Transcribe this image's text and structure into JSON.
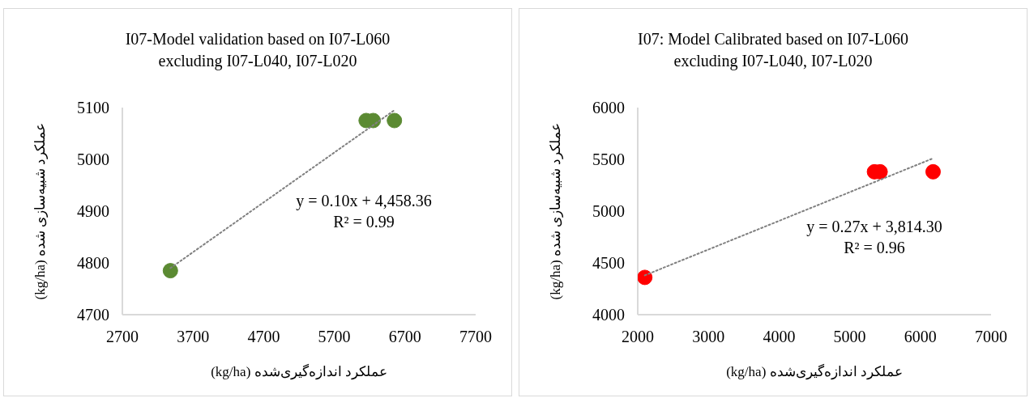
{
  "chart_data": [
    {
      "type": "scatter",
      "title": "I07-Model validation based on I07-L060\nexcluding I07-L040, I07-L020",
      "xlabel": "عملکرد اندازه‌گیری‌شده (kg/ha)",
      "ylabel": "عملکرد شبیه‌سازی شده (kg/ha)",
      "annotations": [
        "y = 0.10x + 4,458.36",
        "R² = 0.99"
      ],
      "series": [
        {
          "color": "#5b8a32",
          "marker": "circle",
          "x": [
            3380,
            6150,
            6250,
            6550
          ],
          "values": [
            4785,
            5075,
            5075,
            5075
          ]
        },
        {
          "type": "line",
          "color": "#808080",
          "marker": "none",
          "line_style": "dotted",
          "x": [
            3380,
            6550
          ],
          "values": [
            4790,
            5095
          ]
        }
      ],
      "xlim": [
        2700,
        7700
      ],
      "xticks": [
        2700,
        3700,
        4700,
        5700,
        6700,
        7700
      ],
      "ylim": [
        4700,
        5100
      ],
      "yticks": [
        4700,
        4800,
        4900,
        5000,
        5100
      ],
      "grid": false,
      "legend": false
    },
    {
      "type": "scatter",
      "title": "I07: Model Calibrated based on I07-L060\nexcluding I07-L040, I07-L020",
      "xlabel": "عملکرد اندازه‌گیری‌شده (kg/ha)",
      "ylabel": "عملکرد شبیه‌سازی شده (kg/ha)",
      "annotations": [
        "y = 0.27x + 3,814.30",
        "R² = 0.96"
      ],
      "series": [
        {
          "color": "#ff0000",
          "marker": "circle",
          "x": [
            2100,
            5350,
            5430,
            6180
          ],
          "values": [
            4360,
            5380,
            5380,
            5380
          ]
        },
        {
          "type": "line",
          "color": "#808080",
          "marker": "none",
          "line_style": "dotted",
          "x": [
            2100,
            6180
          ],
          "values": [
            4380,
            5510
          ]
        }
      ],
      "xlim": [
        2000,
        7000
      ],
      "xticks": [
        2000,
        3000,
        4000,
        5000,
        6000,
        7000
      ],
      "ylim": [
        4000,
        6000
      ],
      "yticks": [
        4000,
        4500,
        5000,
        5500,
        6000
      ],
      "grid": false,
      "legend": false
    }
  ]
}
